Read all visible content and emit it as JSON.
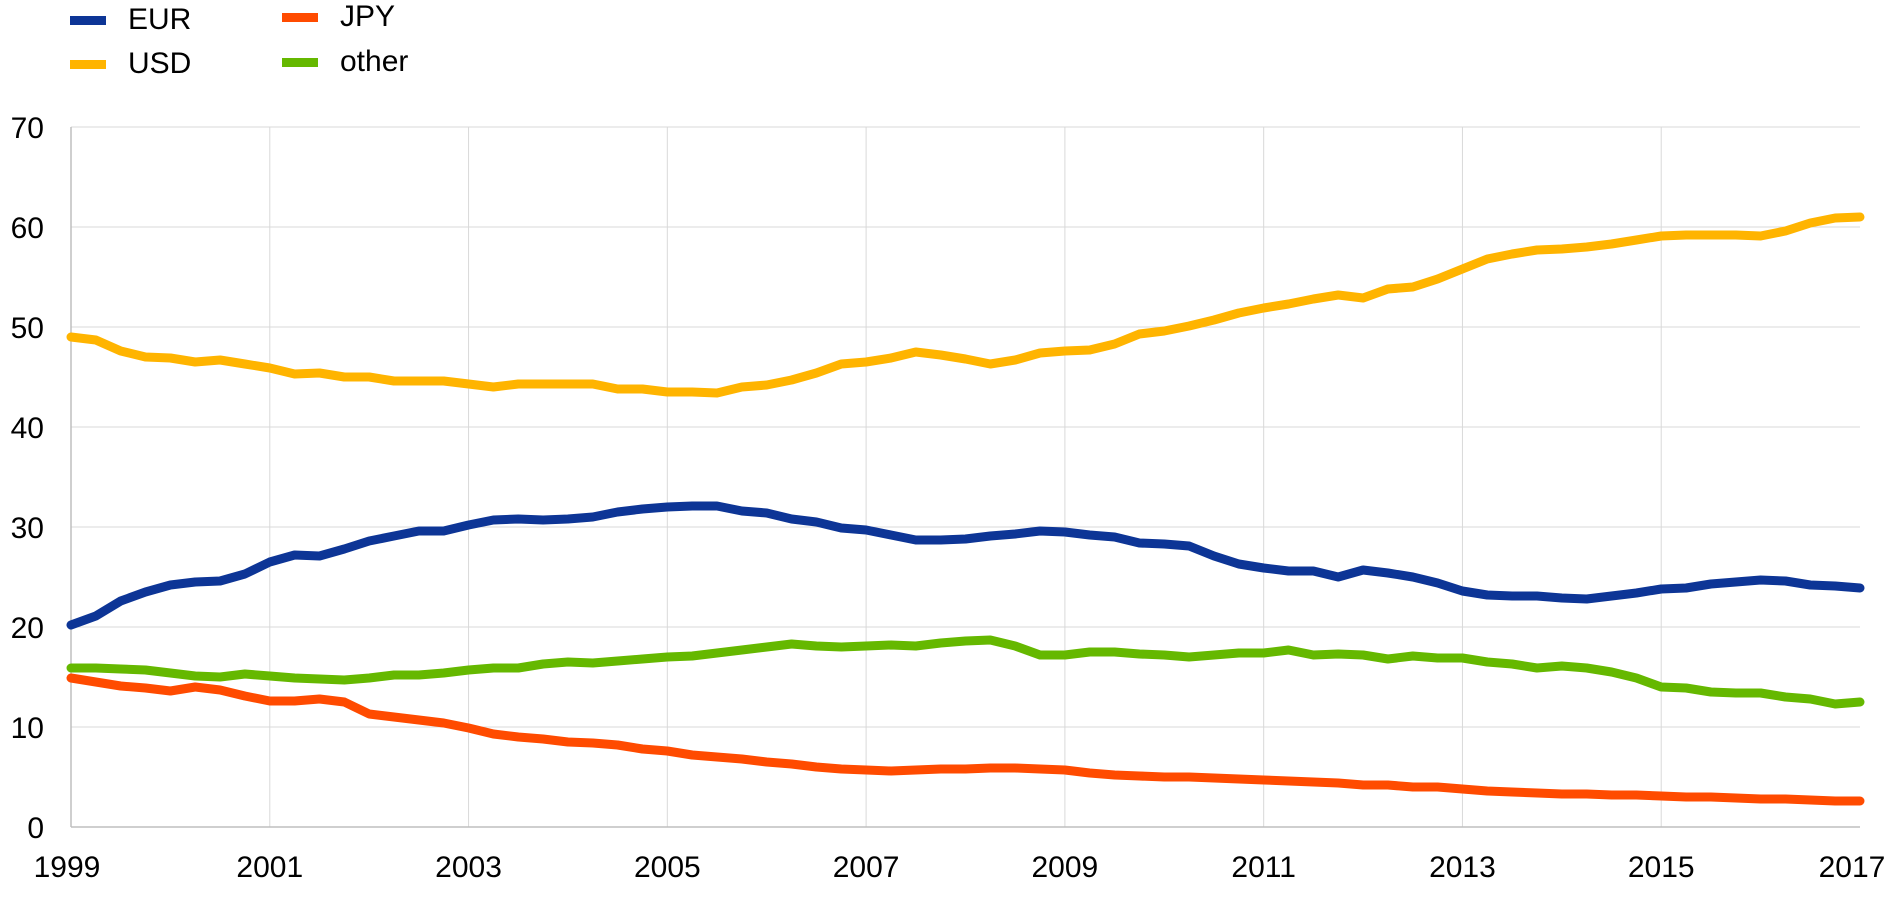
{
  "chart_data": {
    "type": "line",
    "title": "",
    "xlabel": "",
    "ylabel": "",
    "xlim": [
      1999,
      2017
    ],
    "ylim": [
      0,
      70
    ],
    "grid": true,
    "legend_position": "top-left",
    "x_ticks": [
      "1999",
      "2001",
      "2003",
      "2005",
      "2007",
      "2009",
      "2011",
      "2013",
      "2015",
      "2017"
    ],
    "y_ticks": [
      "0",
      "10",
      "20",
      "30",
      "40",
      "50",
      "60",
      "70"
    ],
    "x": [
      1999.0,
      1999.25,
      1999.5,
      1999.75,
      2000.0,
      2000.25,
      2000.5,
      2000.75,
      2001.0,
      2001.25,
      2001.5,
      2001.75,
      2002.0,
      2002.25,
      2002.5,
      2002.75,
      2003.0,
      2003.25,
      2003.5,
      2003.75,
      2004.0,
      2004.25,
      2004.5,
      2004.75,
      2005.0,
      2005.25,
      2005.5,
      2005.75,
      2006.0,
      2006.25,
      2006.5,
      2006.75,
      2007.0,
      2007.25,
      2007.5,
      2007.75,
      2008.0,
      2008.25,
      2008.5,
      2008.75,
      2009.0,
      2009.25,
      2009.5,
      2009.75,
      2010.0,
      2010.25,
      2010.5,
      2010.75,
      2011.0,
      2011.25,
      2011.5,
      2011.75,
      2012.0,
      2012.25,
      2012.5,
      2012.75,
      2013.0,
      2013.25,
      2013.5,
      2013.75,
      2014.0,
      2014.25,
      2014.5,
      2014.75,
      2015.0,
      2015.25,
      2015.5,
      2015.75,
      2016.0,
      2016.25,
      2016.5,
      2016.75,
      2017.0
    ],
    "series": [
      {
        "name": "EUR",
        "color": "#0d3596",
        "values": [
          20.2,
          21.1,
          22.6,
          23.5,
          24.2,
          24.5,
          24.6,
          25.3,
          26.5,
          27.2,
          27.1,
          27.8,
          28.6,
          29.1,
          29.6,
          29.6,
          30.2,
          30.7,
          30.8,
          30.7,
          30.8,
          31.0,
          31.5,
          31.8,
          32.0,
          32.1,
          32.1,
          31.6,
          31.4,
          30.8,
          30.5,
          29.9,
          29.7,
          29.2,
          28.7,
          28.7,
          28.8,
          29.1,
          29.3,
          29.6,
          29.5,
          29.2,
          29.0,
          28.4,
          28.3,
          28.1,
          27.1,
          26.3,
          25.9,
          25.6,
          25.6,
          25.0,
          25.7,
          25.4,
          25.0,
          24.4,
          23.6,
          23.2,
          23.1,
          23.1,
          22.9,
          22.8,
          23.1,
          23.4,
          23.8,
          23.9,
          24.3,
          24.5,
          24.7,
          24.6,
          24.2,
          24.1,
          23.9
        ]
      },
      {
        "name": "JPY",
        "color": "#ff4b00",
        "values": [
          14.9,
          14.5,
          14.1,
          13.9,
          13.6,
          14.0,
          13.7,
          13.1,
          12.6,
          12.6,
          12.8,
          12.5,
          11.3,
          11.0,
          10.7,
          10.4,
          9.9,
          9.3,
          9.0,
          8.8,
          8.5,
          8.4,
          8.2,
          7.8,
          7.6,
          7.2,
          7.0,
          6.8,
          6.5,
          6.3,
          6.0,
          5.8,
          5.7,
          5.6,
          5.7,
          5.8,
          5.8,
          5.9,
          5.9,
          5.8,
          5.7,
          5.4,
          5.2,
          5.1,
          5.0,
          5.0,
          4.9,
          4.8,
          4.7,
          4.6,
          4.5,
          4.4,
          4.2,
          4.2,
          4.0,
          4.0,
          3.8,
          3.6,
          3.5,
          3.4,
          3.3,
          3.3,
          3.2,
          3.2,
          3.1,
          3.0,
          3.0,
          2.9,
          2.8,
          2.8,
          2.7,
          2.6,
          2.6
        ]
      },
      {
        "name": "USD",
        "color": "#ffb400",
        "values": [
          49.0,
          48.7,
          47.6,
          47.0,
          46.9,
          46.5,
          46.7,
          46.3,
          45.9,
          45.3,
          45.4,
          45.0,
          45.0,
          44.6,
          44.6,
          44.6,
          44.3,
          44.0,
          44.3,
          44.3,
          44.3,
          44.3,
          43.8,
          43.8,
          43.5,
          43.5,
          43.4,
          44.0,
          44.2,
          44.7,
          45.4,
          46.3,
          46.5,
          46.9,
          47.5,
          47.2,
          46.8,
          46.3,
          46.7,
          47.4,
          47.6,
          47.7,
          48.3,
          49.3,
          49.6,
          50.1,
          50.7,
          51.4,
          51.9,
          52.3,
          52.8,
          53.2,
          52.9,
          53.8,
          54.0,
          54.8,
          55.8,
          56.8,
          57.3,
          57.7,
          57.8,
          58.0,
          58.3,
          58.7,
          59.1,
          59.2,
          59.2,
          59.2,
          59.1,
          59.6,
          60.4,
          60.9,
          61.0
        ]
      },
      {
        "name": "other",
        "color": "#65b800",
        "values": [
          15.9,
          15.9,
          15.8,
          15.7,
          15.4,
          15.1,
          15.0,
          15.3,
          15.1,
          14.9,
          14.8,
          14.7,
          14.9,
          15.2,
          15.2,
          15.4,
          15.7,
          15.9,
          15.9,
          16.3,
          16.5,
          16.4,
          16.6,
          16.8,
          17.0,
          17.1,
          17.4,
          17.7,
          18.0,
          18.3,
          18.1,
          18.0,
          18.1,
          18.2,
          18.1,
          18.4,
          18.6,
          18.7,
          18.1,
          17.2,
          17.2,
          17.5,
          17.5,
          17.3,
          17.2,
          17.0,
          17.2,
          17.4,
          17.4,
          17.7,
          17.2,
          17.3,
          17.2,
          16.8,
          17.1,
          16.9,
          16.9,
          16.5,
          16.3,
          15.9,
          16.1,
          15.9,
          15.5,
          14.9,
          14.0,
          13.9,
          13.5,
          13.4,
          13.4,
          13.0,
          12.8,
          12.3,
          12.5
        ]
      }
    ]
  },
  "legend": {
    "items": [
      {
        "label": "EUR",
        "color": "#0d3596"
      },
      {
        "label": "JPY",
        "color": "#ff4b00"
      },
      {
        "label": "USD",
        "color": "#ffb400"
      },
      {
        "label": "other",
        "color": "#65b800"
      }
    ]
  }
}
